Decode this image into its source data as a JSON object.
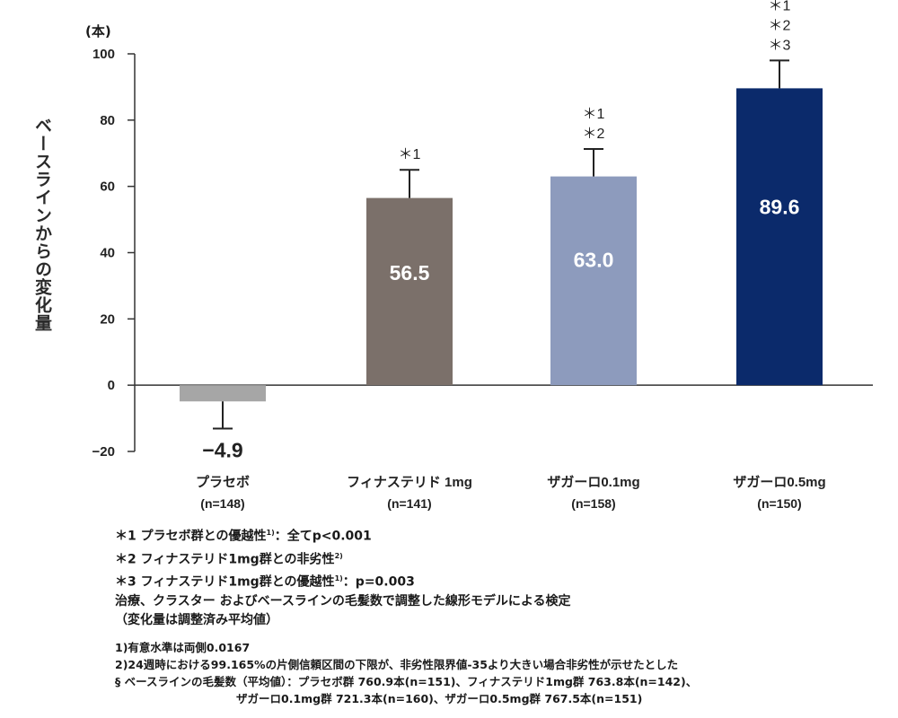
{
  "chart_data": {
    "type": "bar",
    "ylabel": "ベースラインからの変化量",
    "yunit": "(本)",
    "ylim": [
      -20,
      100
    ],
    "yticks": [
      -20,
      0,
      20,
      40,
      60,
      80,
      100
    ],
    "ytick_labels": [
      "−20",
      "0",
      "20",
      "40",
      "60",
      "80",
      "100"
    ],
    "categories": [
      {
        "name": "プラセボ",
        "n": "(n=148)"
      },
      {
        "name": "フィナステリド 1mg",
        "n": "(n=141)"
      },
      {
        "name": "ザガーロ0.1mg",
        "n": "(n=158)"
      },
      {
        "name": "ザガーロ0.5mg",
        "n": "(n=150)"
      }
    ],
    "values": [
      -4.9,
      56.5,
      63.0,
      89.6
    ],
    "value_labels": [
      "−4.9",
      "56.5",
      "63.0",
      "89.6"
    ],
    "error_bars": [
      8.2,
      8.5,
      8.3,
      8.4
    ],
    "colors": [
      "#a6a6a6",
      "#7b706a",
      "#8d9bbd",
      "#0b2a6b"
    ],
    "significance": [
      [],
      [
        "＊1"
      ],
      [
        "＊1",
        "＊2"
      ],
      [
        "＊1",
        "＊2",
        "＊3"
      ]
    ],
    "grid": false
  },
  "footnotes": {
    "n1_mark": "＊1",
    "n1_text": "プラセボ群との優越性",
    "n1_ref": "1)",
    "n1_result": "：全てp<0.001",
    "n2_mark": "＊2",
    "n2_text": "フィナステリド1mg群との非劣性",
    "n2_ref": "2)",
    "n3_mark": "＊3",
    "n3_text": "フィナステリド1mg群との優越性",
    "n3_ref": "1)",
    "n3_result": "：p=0.003",
    "method": "治療、クラスター およびベースラインの毛髪数で調整した線形モデルによる検定",
    "method_note": "（変化量は調整済み平均値）",
    "ref1": "1)有意水準は両側0.0167",
    "ref2": "2)24週時における99.165%の片側信頼区間の下限が、非劣性限界値-35より大きい場合非劣性が示せたとした",
    "baseline_line1": "§ ベースラインの毛髪数（平均値）：プラセボ群 760.9本(n=151)、フィナステリド1mg群 763.8本(n=142)、",
    "baseline_line2": "ザガーロ0.1mg群 721.3本(n=160)、ザガーロ0.5mg群 767.5本(n=151)"
  }
}
